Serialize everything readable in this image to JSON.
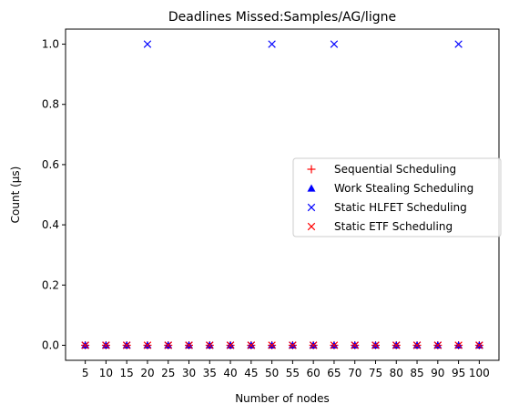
{
  "chart_data": {
    "type": "scatter",
    "title": "Deadlines Missed:Samples/AG/ligne",
    "xlabel": "Number of nodes",
    "ylabel": "Count (µs)",
    "categories": [
      "5",
      "10",
      "15",
      "20",
      "25",
      "30",
      "35",
      "40",
      "45",
      "50",
      "55",
      "60",
      "65",
      "70",
      "75",
      "80",
      "85",
      "90",
      "95",
      "100"
    ],
    "ylim": [
      -0.05,
      1.05
    ],
    "yticks": [
      "0.0",
      "0.2",
      "0.4",
      "0.6",
      "0.8",
      "1.0"
    ],
    "grid": false,
    "legend_position": "center-right",
    "series": [
      {
        "name": "Sequential Scheduling",
        "marker": "plus",
        "color": "#ff0000",
        "values": [
          0,
          0,
          0,
          0,
          0,
          0,
          0,
          0,
          0,
          0,
          0,
          0,
          0,
          0,
          0,
          0,
          0,
          0,
          0,
          0
        ]
      },
      {
        "name": "Work Stealing Scheduling",
        "marker": "triangle",
        "color": "#0000ff",
        "values": [
          0,
          0,
          0,
          0,
          0,
          0,
          0,
          0,
          0,
          0,
          0,
          0,
          0,
          0,
          0,
          0,
          0,
          0,
          0,
          0
        ]
      },
      {
        "name": "Static HLFET Scheduling",
        "marker": "x",
        "color": "#0000ff",
        "values": [
          0,
          0,
          0,
          1,
          0,
          0,
          0,
          0,
          0,
          1,
          0,
          0,
          1,
          0,
          0,
          0,
          0,
          0,
          1,
          0
        ]
      },
      {
        "name": "Static ETF Scheduling",
        "marker": "x",
        "color": "#ff0000",
        "values": [
          0,
          0,
          0,
          0,
          0,
          0,
          0,
          0,
          0,
          0,
          0,
          0,
          0,
          0,
          0,
          0,
          0,
          0,
          0,
          0
        ]
      }
    ]
  }
}
